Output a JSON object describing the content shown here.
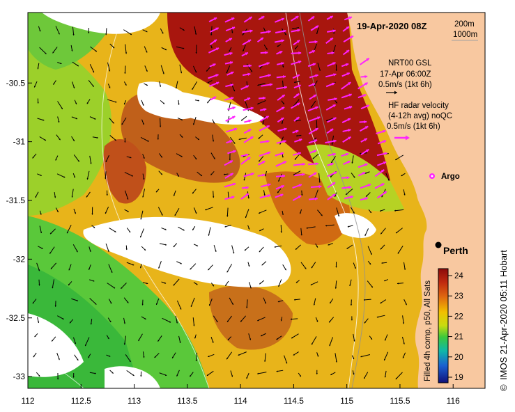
{
  "map": {
    "title": "19-Apr-2020 08Z",
    "scale_note_1": "200m",
    "scale_note_2": "1000m",
    "lon_ticks": [
      112,
      112.5,
      113,
      113.5,
      114,
      114.5,
      115,
      115.5,
      116
    ],
    "lat_ticks": [
      -30.5,
      -31,
      -31.5,
      -32,
      -32.5,
      -33
    ],
    "lon_range": [
      112,
      116.3
    ],
    "lat_range": [
      -33.1,
      -29.9
    ]
  },
  "legend": {
    "nrt_line1": "NRT00 GSL",
    "nrt_line2": "17-Apr 06:00Z",
    "nrt_line3": "0.5m/s (1kt 6h)",
    "hf_line1": "HF radar velocity",
    "hf_line2": "(4-12h avg) noQC",
    "hf_line3": "0.5m/s (1kt 6h)",
    "argo_label": "Argo",
    "arrow_black": "#000000",
    "arrow_magenta": "#ff22ff"
  },
  "places": {
    "city": "Perth"
  },
  "colorbar": {
    "values": [
      "24",
      "23",
      "22",
      "21",
      "20",
      "19"
    ],
    "label": "Filled 4h comp, p50, All Sats"
  },
  "credit": {
    "text": "IMOS 21-Apr-2020 05:11 Hobart",
    "symbol": "©"
  },
  "colors": {
    "land": "#f8c8a0",
    "frame": "#000000"
  }
}
